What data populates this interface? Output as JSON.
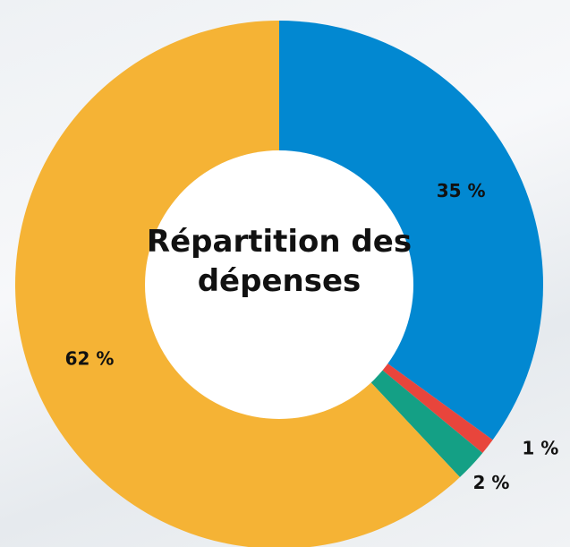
{
  "chart_data": {
    "type": "donut",
    "title": "Répartition des dépenses",
    "values": [
      35,
      1,
      2,
      62
    ],
    "value_labels": [
      "35 %",
      "1 %",
      "2 %",
      "62 %"
    ],
    "colors": [
      "#0288d1",
      "#e8453c",
      "#14a085",
      "#f5b335"
    ]
  }
}
